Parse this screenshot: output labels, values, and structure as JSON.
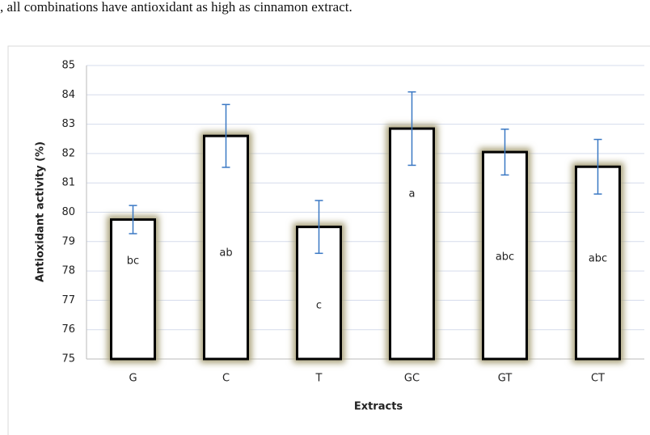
{
  "page_text": ", all combinations have antioxidant as high as cinnamon extract.",
  "chart_data": {
    "type": "bar",
    "x_label": "Extracts",
    "y_label": "Antioxidant activity (%)",
    "categories": [
      "G",
      "C",
      "T",
      "GC",
      "GT",
      "CT"
    ],
    "values": [
      79.75,
      82.6,
      79.5,
      82.85,
      82.05,
      81.55
    ],
    "errors": [
      0.48,
      1.07,
      0.9,
      1.25,
      0.78,
      0.93
    ],
    "letters": [
      "bc",
      "ab",
      "c",
      "a",
      "abc",
      "abc"
    ],
    "color": "#ffffff",
    "edge_color": "#000000",
    "error_color": "#3a78c4",
    "ylim": [
      75,
      85
    ],
    "yticks": [
      75,
      76,
      77,
      78,
      79,
      80,
      81,
      82,
      83,
      84,
      85
    ],
    "grid": true
  }
}
